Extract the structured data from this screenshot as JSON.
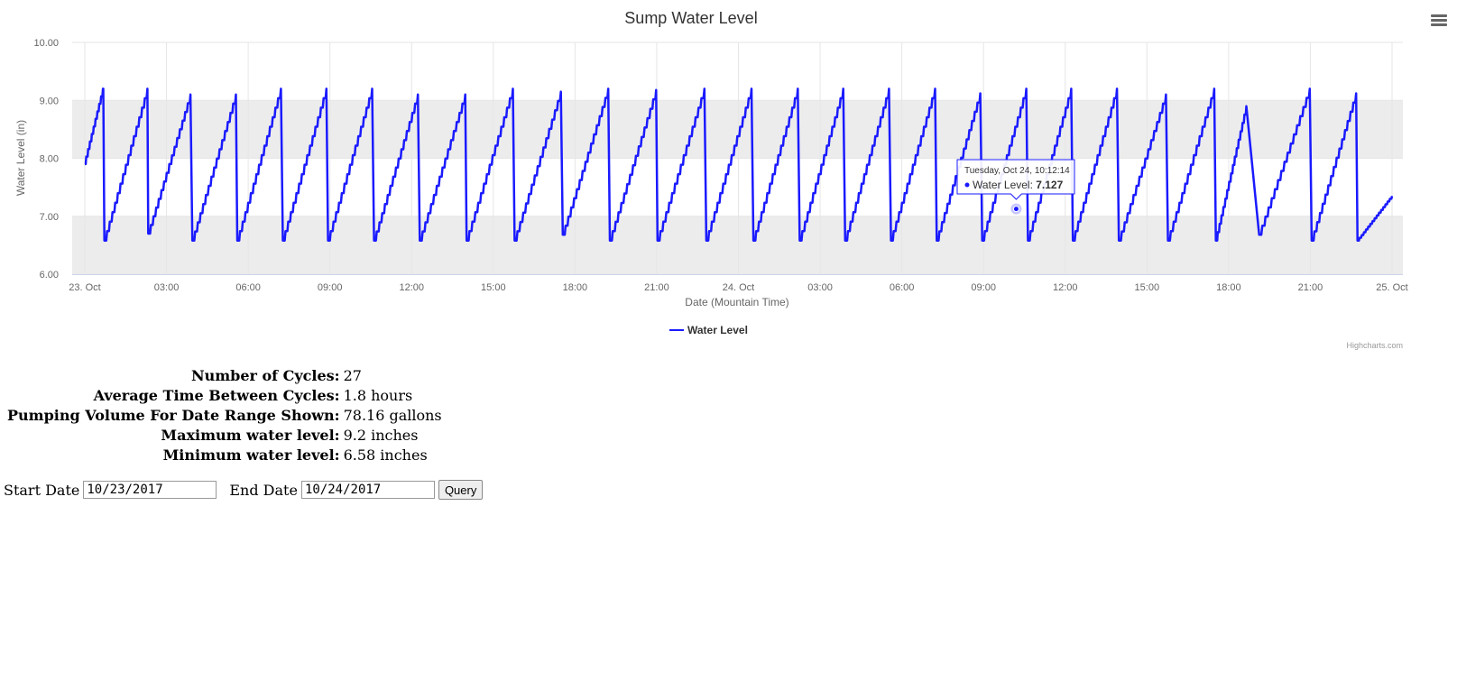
{
  "chart_data": {
    "type": "line",
    "title": "Sump Water Level",
    "xlabel": "Date (Mountain Time)",
    "ylabel": "Water Level (in)",
    "ylim": [
      6.0,
      10.0
    ],
    "yticks": [
      "6.00",
      "7.00",
      "8.00",
      "9.00",
      "10.00"
    ],
    "xrange": [
      0,
      48
    ],
    "xticks": [
      {
        "x": 0,
        "label": "23. Oct"
      },
      {
        "x": 3,
        "label": "03:00"
      },
      {
        "x": 6,
        "label": "06:00"
      },
      {
        "x": 9,
        "label": "09:00"
      },
      {
        "x": 12,
        "label": "12:00"
      },
      {
        "x": 15,
        "label": "15:00"
      },
      {
        "x": 18,
        "label": "18:00"
      },
      {
        "x": 21,
        "label": "21:00"
      },
      {
        "x": 24,
        "label": "24. Oct"
      },
      {
        "x": 27,
        "label": "03:00"
      },
      {
        "x": 30,
        "label": "06:00"
      },
      {
        "x": 33,
        "label": "09:00"
      },
      {
        "x": 36,
        "label": "12:00"
      },
      {
        "x": 39,
        "label": "15:00"
      },
      {
        "x": 42,
        "label": "18:00"
      },
      {
        "x": 45,
        "label": "21:00"
      },
      {
        "x": 48,
        "label": "25. Oct"
      }
    ],
    "plot_bands": [
      {
        "from": 7.0,
        "to": 6.0,
        "color": "#ececec"
      },
      {
        "from": 8.0,
        "to": 9.0,
        "color": "#ececec"
      }
    ],
    "grid": true,
    "legend_position": "bottom-center",
    "series": [
      {
        "name": "Water Level",
        "color": "#1a1aff",
        "cycles": [
          {
            "min_t": 0.72,
            "min": 6.58,
            "peak_t": 2.3,
            "peak": 9.2
          },
          {
            "min_t": 2.33,
            "min": 6.7,
            "peak_t": 3.88,
            "peak": 9.1
          },
          {
            "min_t": 3.95,
            "min": 6.58,
            "peak_t": 5.55,
            "peak": 9.1
          },
          {
            "min_t": 5.6,
            "min": 6.58,
            "peak_t": 7.2,
            "peak": 9.2
          },
          {
            "min_t": 7.27,
            "min": 6.58,
            "peak_t": 8.87,
            "peak": 9.2
          },
          {
            "min_t": 8.93,
            "min": 6.58,
            "peak_t": 10.55,
            "peak": 9.2
          },
          {
            "min_t": 10.62,
            "min": 6.58,
            "peak_t": 12.23,
            "peak": 9.1
          },
          {
            "min_t": 12.3,
            "min": 6.58,
            "peak_t": 13.97,
            "peak": 9.1
          },
          {
            "min_t": 14.02,
            "min": 6.58,
            "peak_t": 15.72,
            "peak": 9.2
          },
          {
            "min_t": 15.78,
            "min": 6.58,
            "peak_t": 17.48,
            "peak": 9.15
          },
          {
            "min_t": 17.55,
            "min": 6.68,
            "peak_t": 19.22,
            "peak": 9.2
          },
          {
            "min_t": 19.28,
            "min": 6.58,
            "peak_t": 20.98,
            "peak": 9.18
          },
          {
            "min_t": 21.03,
            "min": 6.58,
            "peak_t": 22.75,
            "peak": 9.2
          },
          {
            "min_t": 22.82,
            "min": 6.58,
            "peak_t": 24.48,
            "peak": 9.2
          },
          {
            "min_t": 24.55,
            "min": 6.58,
            "peak_t": 26.18,
            "peak": 9.2
          },
          {
            "min_t": 26.25,
            "min": 6.58,
            "peak_t": 27.85,
            "peak": 9.2
          },
          {
            "min_t": 27.92,
            "min": 6.58,
            "peak_t": 29.53,
            "peak": 9.2
          },
          {
            "min_t": 29.6,
            "min": 6.58,
            "peak_t": 31.22,
            "peak": 9.2
          },
          {
            "min_t": 31.28,
            "min": 6.58,
            "peak_t": 32.88,
            "peak": 9.12
          },
          {
            "min_t": 32.95,
            "min": 6.58,
            "peak_t": 34.57,
            "peak": 9.2
          },
          {
            "min_t": 34.63,
            "min": 6.58,
            "peak_t": 36.22,
            "peak": 9.2
          },
          {
            "min_t": 36.28,
            "min": 6.58,
            "peak_t": 37.9,
            "peak": 9.2
          },
          {
            "min_t": 37.97,
            "min": 6.58,
            "peak_t": 39.7,
            "peak": 9.1
          },
          {
            "min_t": 39.77,
            "min": 6.58,
            "peak_t": 41.47,
            "peak": 9.2
          },
          {
            "min_t": 41.53,
            "min": 6.58,
            "peak_t": 42.65,
            "peak": 8.9
          },
          {
            "min_t": 43.12,
            "min": 6.68,
            "peak_t": 44.98,
            "peak": 9.2
          },
          {
            "min_t": 45.05,
            "min": 6.58,
            "peak_t": 46.68,
            "peak": 9.12
          },
          {
            "min_t": 46.73,
            "min": 6.58,
            "peak_t": 48.0,
            "peak": 7.35
          }
        ],
        "start": {
          "t": 0.0,
          "v": 7.9
        }
      }
    ],
    "tooltip": {
      "date": "Tuesday, Oct 24, 10:12:14",
      "series": "Water Level",
      "value": "7.127",
      "x": 34.2,
      "y": 7.127
    },
    "credits": "Highcharts.com"
  },
  "stats": [
    {
      "label": "Number of Cycles:",
      "value": "27"
    },
    {
      "label": "Average Time Between Cycles:",
      "value": "1.8 hours"
    },
    {
      "label": "Pumping Volume For Date Range Shown:",
      "value": "78.16 gallons"
    },
    {
      "label": "Maximum water level:",
      "value": "9.2 inches"
    },
    {
      "label": "Minimum water level:",
      "value": "6.58 inches"
    }
  ],
  "query": {
    "start_label": "Start Date",
    "start_value": "10/23/2017",
    "end_label": "End Date",
    "end_value": "10/24/2017",
    "button": "Query"
  },
  "menu_icon": "hamburger-menu-icon"
}
